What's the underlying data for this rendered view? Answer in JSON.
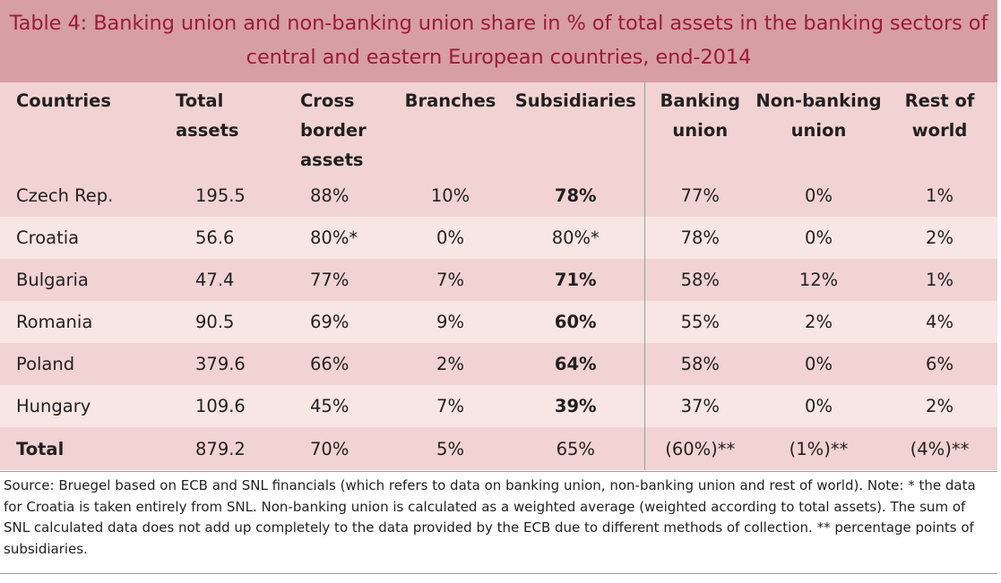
{
  "title": {
    "line1": "Table 4: Banking union and non-banking union share in % of total assets in the banking sectors of",
    "line2": "central and eastern European countries, end-2014"
  },
  "headers": [
    [
      "Countries"
    ],
    [
      "Total",
      "assets"
    ],
    [
      "Cross",
      "border",
      "assets"
    ],
    [
      "Branches"
    ],
    [
      "Subsidiaries"
    ],
    [
      "Banking",
      "union"
    ],
    [
      "Non-banking",
      "union"
    ],
    [
      "Rest of",
      "world"
    ]
  ],
  "rows": [
    {
      "country": "Czech Rep.",
      "total_assets": "195.5",
      "cross_border": "88%",
      "branches": "10%",
      "subsidiaries": "78%",
      "banking_union": "77%",
      "non_banking_union": "0%",
      "rest_of_world": "1%"
    },
    {
      "country": "Croatia",
      "total_assets": "56.6",
      "cross_border": "80%*",
      "branches": "0%",
      "subsidiaries": "80%*",
      "banking_union": "78%",
      "non_banking_union": "0%",
      "rest_of_world": "2%"
    },
    {
      "country": "Bulgaria",
      "total_assets": "47.4",
      "cross_border": "77%",
      "branches": "7%",
      "subsidiaries": "71%",
      "banking_union": "58%",
      "non_banking_union": "12%",
      "rest_of_world": "1%"
    },
    {
      "country": "Romania",
      "total_assets": "90.5",
      "cross_border": "69%",
      "branches": "9%",
      "subsidiaries": "60%",
      "banking_union": "55%",
      "non_banking_union": "2%",
      "rest_of_world": "4%"
    },
    {
      "country": "Poland",
      "total_assets": "379.6",
      "cross_border": "66%",
      "branches": "2%",
      "subsidiaries": "64%",
      "banking_union": "58%",
      "non_banking_union": "0%",
      "rest_of_world": "6%"
    },
    {
      "country": "Hungary",
      "total_assets": "109.6",
      "cross_border": "45%",
      "branches": "7%",
      "subsidiaries": "39%",
      "banking_union": "37%",
      "non_banking_union": "0%",
      "rest_of_world": "2%"
    }
  ],
  "total": {
    "country": "Total",
    "total_assets": "879.2",
    "cross_border": "70%",
    "branches": "5%",
    "subsidiaries": "65%",
    "banking_union": "(60%)**",
    "non_banking_union": "(1%)**",
    "rest_of_world": "(4%)**"
  },
  "source": "Source: Bruegel based on ECB and SNL financials (which refers to data on banking union, non-banking union and rest of world). Note: * the data for Croatia is taken entirely from SNL. Non-banking union is calculated as a weighted average (weighted according to total assets). The sum of SNL calculated data does not add up completely to the data provided by the ECB due to different methods of collec­tion. ** percentage points of subsidiaries."
}
